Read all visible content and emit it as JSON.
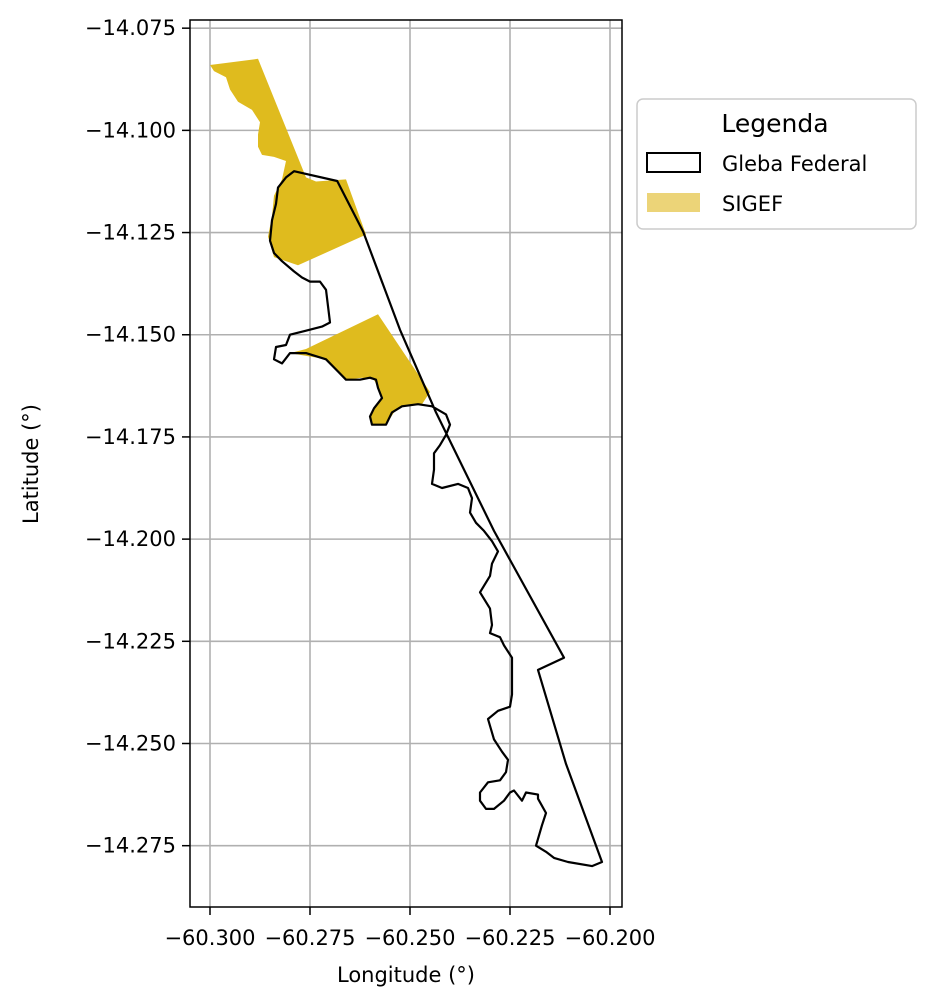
{
  "chart_data": {
    "type": "map",
    "xlabel": "Longitude (°)",
    "ylabel": "Latitude (°)",
    "xlim": [
      -60.305,
      -60.197
    ],
    "ylim": [
      -14.29,
      -14.073
    ],
    "grid": true,
    "legend_position": "outside-right",
    "xticks": [
      -60.3,
      -60.275,
      -60.25,
      -60.225,
      -60.2
    ],
    "xtick_labels": [
      "−60.300",
      "−60.275",
      "−60.250",
      "−60.225",
      "−60.200"
    ],
    "yticks": [
      -14.075,
      -14.1,
      -14.125,
      -14.15,
      -14.175,
      -14.2,
      -14.225,
      -14.25,
      -14.275
    ],
    "ytick_labels": [
      "−14.075",
      "−14.100",
      "−14.125",
      "−14.150",
      "−14.175",
      "−14.200",
      "−14.225",
      "−14.250",
      "−14.275"
    ],
    "legend": {
      "title": "Legenda",
      "entries": [
        {
          "label": "Gleba Federal",
          "style": "outline",
          "edge_color": "#000000",
          "fill": "none"
        },
        {
          "label": "SIGEF",
          "style": "filled",
          "color": "#ECD478"
        }
      ]
    },
    "layers": [
      {
        "name": "Gleba Federal",
        "fill": "none",
        "edge_color": "#000000",
        "polygon": [
          [
            -60.2682,
            -14.1124
          ],
          [
            -60.2617,
            -14.1248
          ],
          [
            -60.2525,
            -14.1488
          ],
          [
            -60.2435,
            -14.169
          ],
          [
            -60.229,
            -14.198
          ],
          [
            -60.2115,
            -14.229
          ],
          [
            -60.218,
            -14.232
          ],
          [
            -60.211,
            -14.255
          ],
          [
            -60.202,
            -14.279
          ],
          [
            -60.2045,
            -14.28
          ],
          [
            -60.2105,
            -14.279
          ],
          [
            -60.214,
            -14.278
          ],
          [
            -60.216,
            -14.2765
          ],
          [
            -60.2185,
            -14.275
          ],
          [
            -60.217,
            -14.27
          ],
          [
            -60.216,
            -14.267
          ],
          [
            -60.218,
            -14.2635
          ],
          [
            -60.218,
            -14.2625
          ],
          [
            -60.221,
            -14.262
          ],
          [
            -60.222,
            -14.264
          ],
          [
            -60.224,
            -14.2615
          ],
          [
            -60.225,
            -14.262
          ],
          [
            -60.2265,
            -14.264
          ],
          [
            -60.229,
            -14.266
          ],
          [
            -60.231,
            -14.266
          ],
          [
            -60.2325,
            -14.264
          ],
          [
            -60.2325,
            -14.262
          ],
          [
            -60.2305,
            -14.2595
          ],
          [
            -60.2275,
            -14.259
          ],
          [
            -60.226,
            -14.257
          ],
          [
            -60.2255,
            -14.254
          ],
          [
            -60.227,
            -14.252
          ],
          [
            -60.229,
            -14.249
          ],
          [
            -60.2305,
            -14.244
          ],
          [
            -60.228,
            -14.242
          ],
          [
            -60.225,
            -14.241
          ],
          [
            -60.2245,
            -14.238
          ],
          [
            -60.2245,
            -14.233
          ],
          [
            -60.2245,
            -14.229
          ],
          [
            -60.2265,
            -14.226
          ],
          [
            -60.2275,
            -14.224
          ],
          [
            -60.23,
            -14.223
          ],
          [
            -60.2295,
            -14.221
          ],
          [
            -60.23,
            -14.217
          ],
          [
            -60.2325,
            -14.213
          ],
          [
            -60.23,
            -14.209
          ],
          [
            -60.2295,
            -14.206
          ],
          [
            -60.228,
            -14.203
          ],
          [
            -60.2295,
            -14.2005
          ],
          [
            -60.2315,
            -14.198
          ],
          [
            -60.2335,
            -14.196
          ],
          [
            -60.235,
            -14.1935
          ],
          [
            -60.2345,
            -14.19
          ],
          [
            -60.2355,
            -14.1875
          ],
          [
            -60.238,
            -14.1865
          ],
          [
            -60.242,
            -14.1875
          ],
          [
            -60.2445,
            -14.1865
          ],
          [
            -60.244,
            -14.183
          ],
          [
            -60.244,
            -14.179
          ],
          [
            -60.2425,
            -14.177
          ],
          [
            -60.241,
            -14.1745
          ],
          [
            -60.24,
            -14.172
          ],
          [
            -60.241,
            -14.1695
          ],
          [
            -60.2445,
            -14.1675
          ],
          [
            -60.248,
            -14.167
          ],
          [
            -60.252,
            -14.1675
          ],
          [
            -60.2545,
            -14.169
          ],
          [
            -60.256,
            -14.172
          ],
          [
            -60.2595,
            -14.172
          ],
          [
            -60.26,
            -14.17
          ],
          [
            -60.259,
            -14.168
          ],
          [
            -60.257,
            -14.1655
          ],
          [
            -60.258,
            -14.163
          ],
          [
            -60.2585,
            -14.161
          ],
          [
            -60.26,
            -14.1605
          ],
          [
            -60.2625,
            -14.161
          ],
          [
            -60.266,
            -14.161
          ],
          [
            -60.268,
            -14.159
          ],
          [
            -60.271,
            -14.156
          ],
          [
            -60.276,
            -14.1545
          ],
          [
            -60.28,
            -14.1545
          ],
          [
            -60.282,
            -14.157
          ],
          [
            -60.284,
            -14.156
          ],
          [
            -60.2835,
            -14.153
          ],
          [
            -60.281,
            -14.1525
          ],
          [
            -60.28,
            -14.15
          ],
          [
            -60.276,
            -14.149
          ],
          [
            -60.272,
            -14.148
          ],
          [
            -60.27,
            -14.147
          ],
          [
            -60.2705,
            -14.143
          ],
          [
            -60.271,
            -14.139
          ],
          [
            -60.2725,
            -14.137
          ],
          [
            -60.275,
            -14.137
          ],
          [
            -60.277,
            -14.136
          ],
          [
            -60.279,
            -14.1345
          ],
          [
            -60.282,
            -14.132
          ],
          [
            -60.284,
            -14.13
          ],
          [
            -60.285,
            -14.127
          ],
          [
            -60.2845,
            -14.122
          ],
          [
            -60.2835,
            -14.118
          ],
          [
            -60.283,
            -14.114
          ],
          [
            -60.281,
            -14.1115
          ],
          [
            -60.279,
            -14.11
          ]
        ]
      },
      {
        "name": "SIGEF",
        "color": "#DFBB1E",
        "polygons": [
          [
            [
              -60.3,
              -14.084
            ],
            [
              -60.288,
              -14.0825
            ],
            [
              -60.276,
              -14.1115
            ],
            [
              -60.2735,
              -14.1125
            ],
            [
              -60.266,
              -14.112
            ],
            [
              -60.261,
              -14.1255
            ],
            [
              -60.278,
              -14.133
            ],
            [
              -60.284,
              -14.131
            ],
            [
              -60.2855,
              -14.126
            ],
            [
              -60.2845,
              -14.121
            ],
            [
              -60.284,
              -14.116
            ],
            [
              -60.282,
              -14.112
            ],
            [
              -60.281,
              -14.1075
            ],
            [
              -60.284,
              -14.1065
            ],
            [
              -60.287,
              -14.106
            ],
            [
              -60.288,
              -14.104
            ],
            [
              -60.288,
              -14.101
            ],
            [
              -60.2875,
              -14.098
            ],
            [
              -60.2895,
              -14.095
            ],
            [
              -60.293,
              -14.093
            ],
            [
              -60.295,
              -14.09
            ],
            [
              -60.296,
              -14.087
            ],
            [
              -60.299,
              -14.0855
            ]
          ],
          [
            [
              -60.28,
              -14.1545
            ],
            [
              -60.276,
              -14.1535
            ],
            [
              -60.258,
              -14.145
            ],
            [
              -60.245,
              -14.164
            ],
            [
              -60.247,
              -14.167
            ],
            [
              -60.252,
              -14.1675
            ],
            [
              -60.254,
              -14.169
            ],
            [
              -60.256,
              -14.172
            ],
            [
              -60.2595,
              -14.172
            ],
            [
              -60.26,
              -14.17
            ],
            [
              -60.259,
              -14.168
            ],
            [
              -60.257,
              -14.1655
            ],
            [
              -60.258,
              -14.163
            ],
            [
              -60.259,
              -14.161
            ],
            [
              -60.262,
              -14.1605
            ],
            [
              -60.266,
              -14.161
            ],
            [
              -60.268,
              -14.159
            ],
            [
              -60.271,
              -14.156
            ]
          ]
        ]
      }
    ]
  }
}
